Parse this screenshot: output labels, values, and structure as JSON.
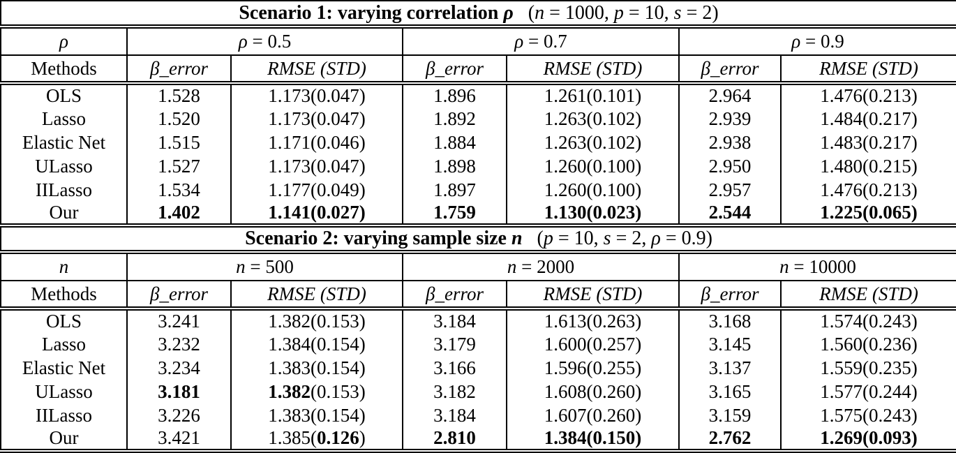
{
  "table": {
    "border_color": "#000000",
    "text_color": "#000000",
    "background_color": "#ffffff",
    "scenarios": [
      {
        "title": [
          [
            "Scenario 1: varying correlation ",
            "b"
          ],
          [
            "ρ",
            "bi"
          ],
          [
            "   (",
            ""
          ],
          [
            "n",
            "i"
          ],
          [
            " = 1000, ",
            ""
          ],
          [
            "p",
            "i"
          ],
          [
            " = 10, ",
            ""
          ],
          [
            "s",
            "i"
          ],
          [
            " = 2)",
            ""
          ]
        ],
        "var_label": [
          [
            "ρ",
            "i"
          ]
        ],
        "groups": [
          [
            [
              "ρ",
              "i"
            ],
            [
              " = 0.5",
              ""
            ]
          ],
          [
            [
              "ρ",
              "i"
            ],
            [
              " = 0.7",
              ""
            ]
          ],
          [
            [
              "ρ",
              "i"
            ],
            [
              " = 0.9",
              ""
            ]
          ]
        ],
        "methods_label": "Methods",
        "beta_header": [
          [
            "β_error",
            "i"
          ]
        ],
        "rmse_header": [
          [
            "RMSE (STD)",
            "i"
          ]
        ],
        "rows": [
          {
            "method": "OLS",
            "cells": [
              "1.528",
              "1.173(0.047)",
              "1.896",
              "1.261(0.101)",
              "2.964",
              "1.476(0.213)"
            ]
          },
          {
            "method": "Lasso",
            "cells": [
              "1.520",
              "1.173(0.047)",
              "1.892",
              "1.263(0.102)",
              "2.939",
              "1.484(0.217)"
            ]
          },
          {
            "method": "Elastic Net",
            "cells": [
              "1.515",
              "1.171(0.046)",
              "1.884",
              "1.263(0.102)",
              "2.938",
              "1.483(0.217)"
            ]
          },
          {
            "method": "ULasso",
            "cells": [
              "1.527",
              "1.173(0.047)",
              "1.898",
              "1.260(0.100)",
              "2.950",
              "1.480(0.215)"
            ]
          },
          {
            "method": "IILasso",
            "cells": [
              "1.534",
              "1.177(0.049)",
              "1.897",
              "1.260(0.100)",
              "2.957",
              "1.476(0.213)"
            ]
          },
          {
            "method": "Our",
            "cells": [
              [
                [
                  "1.402",
                  "b"
                ]
              ],
              [
                [
                  "1.141(0.027)",
                  "b"
                ]
              ],
              [
                [
                  "1.759",
                  "b"
                ]
              ],
              [
                [
                  "1.130(0.023)",
                  "b"
                ]
              ],
              [
                [
                  "2.544",
                  "b"
                ]
              ],
              [
                [
                  "1.225(0.065)",
                  "b"
                ]
              ]
            ]
          }
        ]
      },
      {
        "title": [
          [
            "Scenario 2: varying sample size ",
            "b"
          ],
          [
            "n",
            "bi"
          ],
          [
            "   (",
            ""
          ],
          [
            "p",
            "i"
          ],
          [
            " = 10, ",
            ""
          ],
          [
            "s",
            "i"
          ],
          [
            " = 2, ",
            ""
          ],
          [
            "ρ",
            "i"
          ],
          [
            " = 0.9)",
            ""
          ]
        ],
        "var_label": [
          [
            "n",
            "i"
          ]
        ],
        "groups": [
          [
            [
              "n",
              "i"
            ],
            [
              " = 500",
              ""
            ]
          ],
          [
            [
              "n",
              "i"
            ],
            [
              " = 2000",
              ""
            ]
          ],
          [
            [
              "n",
              "i"
            ],
            [
              " = 10000",
              ""
            ]
          ]
        ],
        "methods_label": "Methods",
        "beta_header": [
          [
            "β_error",
            "i"
          ]
        ],
        "rmse_header": [
          [
            "RMSE (STD)",
            "i"
          ]
        ],
        "rows": [
          {
            "method": "OLS",
            "cells": [
              "3.241",
              "1.382(0.153)",
              "3.184",
              "1.613(0.263)",
              "3.168",
              "1.574(0.243)"
            ]
          },
          {
            "method": "Lasso",
            "cells": [
              "3.232",
              "1.384(0.154)",
              "3.179",
              "1.600(0.257)",
              "3.145",
              "1.560(0.236)"
            ]
          },
          {
            "method": "Elastic Net",
            "cells": [
              "3.234",
              "1.383(0.154)",
              "3.166",
              "1.596(0.255)",
              "3.137",
              "1.559(0.235)"
            ]
          },
          {
            "method": "ULasso",
            "cells": [
              [
                [
                  "3.181",
                  "b"
                ]
              ],
              [
                [
                  "1.382",
                  "b"
                ],
                [
                  "(0.153)",
                  ""
                ]
              ],
              "3.182",
              "1.608(0.260)",
              "3.165",
              "1.577(0.244)"
            ]
          },
          {
            "method": "IILasso",
            "cells": [
              "3.226",
              "1.383(0.154)",
              "3.184",
              "1.607(0.260)",
              "3.159",
              "1.575(0.243)"
            ]
          },
          {
            "method": "Our",
            "cells": [
              "3.421",
              [
                [
                  "1.385(",
                  ""
                ],
                [
                  "0.126",
                  "b"
                ],
                [
                  ")",
                  ""
                ]
              ],
              [
                [
                  "2.810",
                  "b"
                ]
              ],
              [
                [
                  "1.384(0.150)",
                  "b"
                ]
              ],
              [
                [
                  "2.762",
                  "b"
                ]
              ],
              [
                [
                  "1.269(0.093)",
                  "b"
                ]
              ]
            ]
          }
        ]
      }
    ]
  }
}
